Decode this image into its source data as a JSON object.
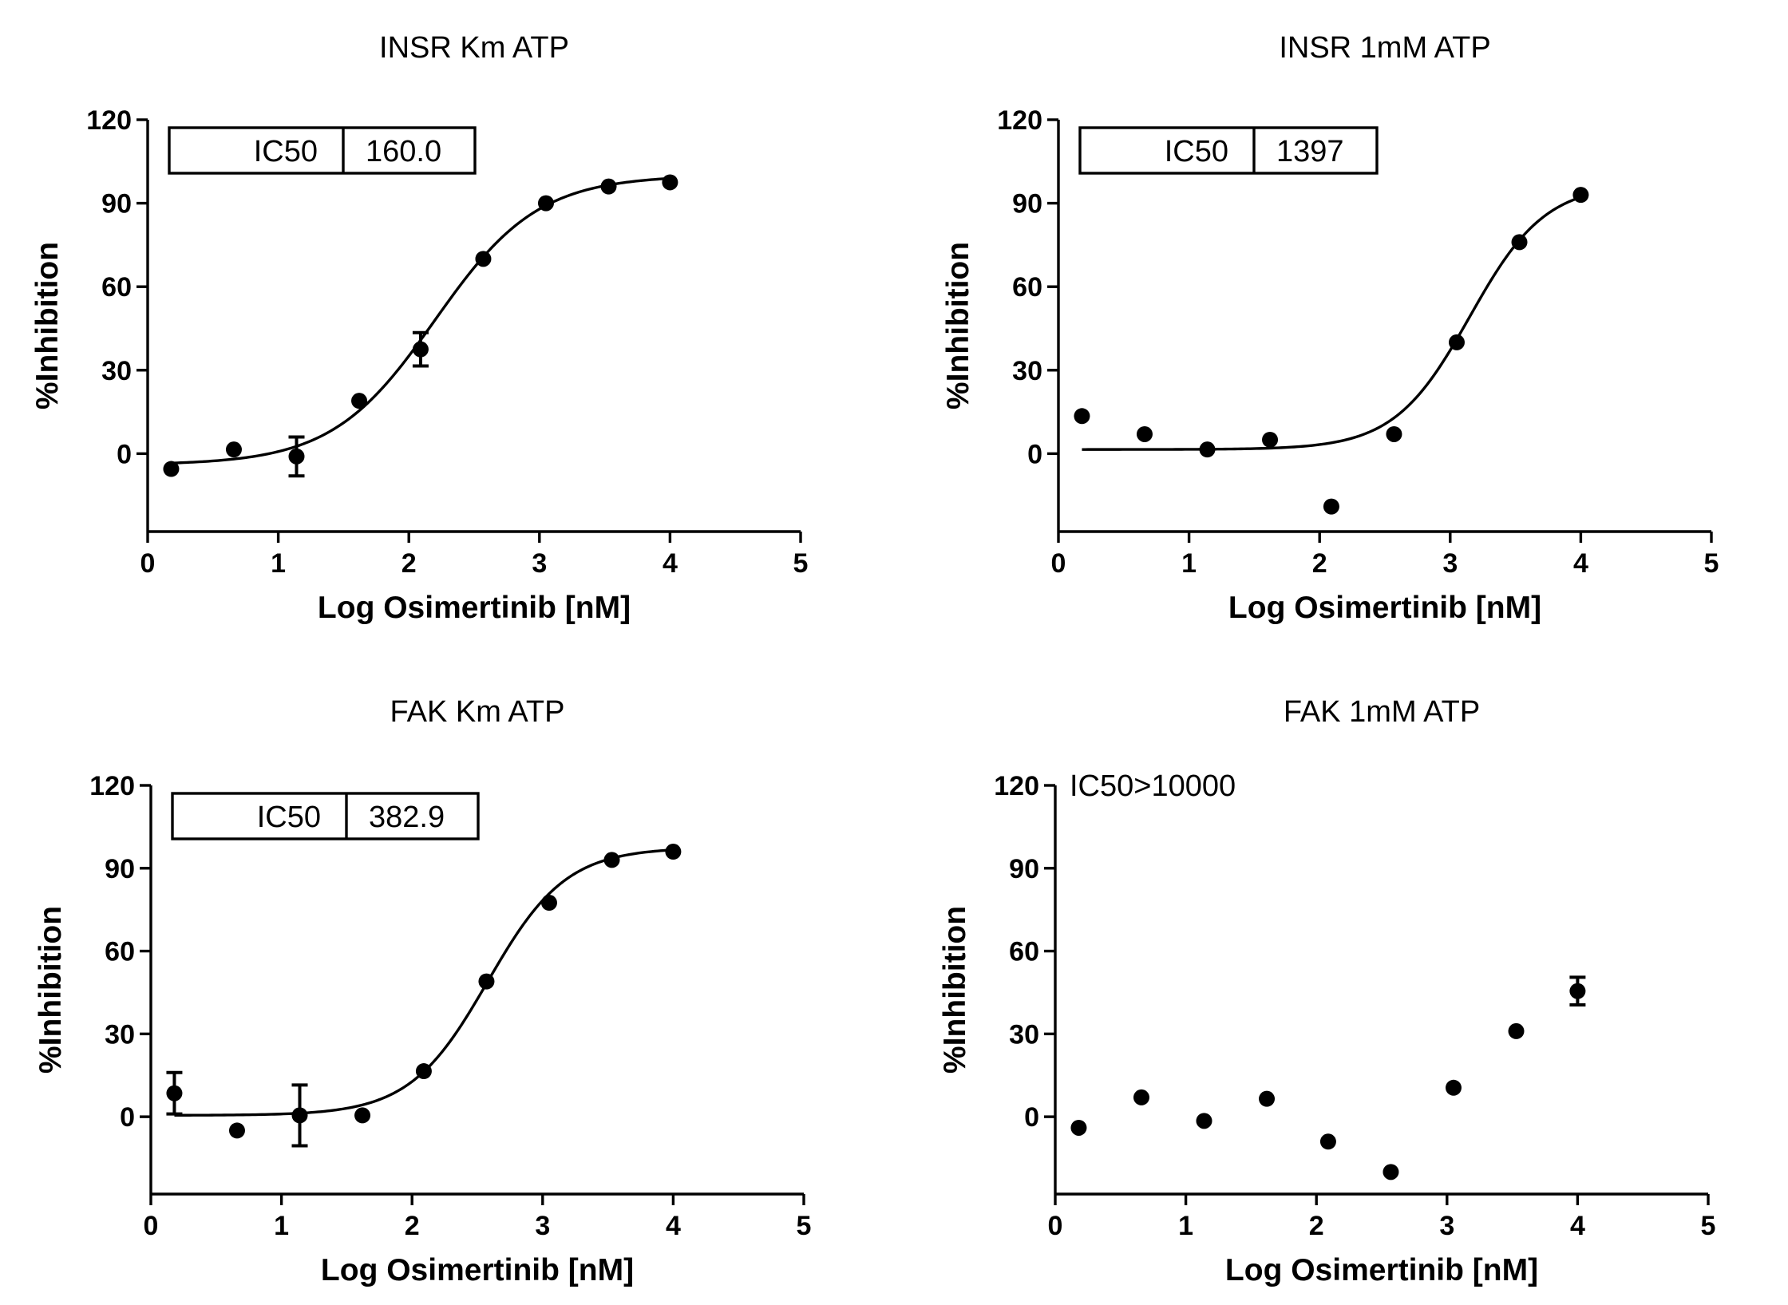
{
  "chart_data": [
    {
      "type": "scatter",
      "title": "INSR Km ATP",
      "xlabel": "Log Osimertinib  [nM]",
      "ylabel": "%Inhibition",
      "xlim": [
        0,
        5
      ],
      "ylim": [
        -28,
        120
      ],
      "x_ticks": [
        "0",
        "1",
        "2",
        "3",
        "4",
        "5"
      ],
      "y_ticks": [
        "0",
        "30",
        "60",
        "90",
        "120"
      ],
      "annotation": {
        "style": "box",
        "label": "IC50",
        "value": "160.0"
      },
      "fit_curve": true,
      "fit_params": {
        "bottom": -4,
        "top": 100,
        "logIC50": 2.2,
        "hill": 1.1
      },
      "series": [
        {
          "x": [
            0.18,
            0.66,
            1.14,
            1.62,
            2.09,
            2.57,
            3.05,
            3.53,
            4.0
          ],
          "y": [
            -5.5,
            1.5,
            -1,
            19,
            37.5,
            70,
            90,
            96,
            97.5
          ],
          "err": [
            0,
            0,
            7,
            0,
            6,
            0,
            0,
            0,
            0
          ]
        }
      ]
    },
    {
      "type": "scatter",
      "title": "INSR 1mM ATP",
      "xlabel": "Log Osimertinib  [nM]",
      "ylabel": "%Inhibition",
      "xlim": [
        0,
        5
      ],
      "ylim": [
        -28,
        120
      ],
      "x_ticks": [
        "0",
        "1",
        "2",
        "3",
        "4",
        "5"
      ],
      "y_ticks": [
        "0",
        "30",
        "60",
        "90",
        "120"
      ],
      "annotation": {
        "style": "box",
        "label": "IC50",
        "value": "1397"
      },
      "fit_curve": true,
      "fit_params": {
        "bottom": 1.5,
        "top": 97,
        "logIC50": 3.15,
        "hill": 1.5
      },
      "series": [
        {
          "x": [
            0.18,
            0.66,
            1.14,
            1.62,
            2.09,
            2.57,
            3.05,
            3.53,
            4.0
          ],
          "y": [
            13.5,
            7,
            1.5,
            5,
            -19,
            7,
            40,
            76,
            93
          ],
          "err": [
            0,
            0,
            0,
            0,
            0,
            0,
            0,
            0,
            0
          ]
        }
      ]
    },
    {
      "type": "scatter",
      "title": "FAK Km ATP",
      "xlabel": "Log Osimertinib  [nM]",
      "ylabel": "%Inhibition",
      "xlim": [
        0,
        5
      ],
      "ylim": [
        -28,
        120
      ],
      "x_ticks": [
        "0",
        "1",
        "2",
        "3",
        "4",
        "5"
      ],
      "y_ticks": [
        "0",
        "30",
        "60",
        "90",
        "120"
      ],
      "annotation": {
        "style": "box",
        "label": "IC50",
        "value": "382.9"
      },
      "fit_curve": true,
      "fit_params": {
        "bottom": 0.5,
        "top": 97.5,
        "logIC50": 2.58,
        "hill": 1.45
      },
      "series": [
        {
          "x": [
            0.18,
            0.66,
            1.14,
            1.62,
            2.09,
            2.57,
            3.05,
            3.53,
            4.0
          ],
          "y": [
            8.5,
            -5,
            0.5,
            0.5,
            16.5,
            49,
            77.5,
            93,
            96
          ],
          "err": [
            7.5,
            0,
            11,
            0,
            0,
            0,
            0,
            0,
            0
          ]
        }
      ]
    },
    {
      "type": "scatter",
      "title": "FAK 1mM ATP",
      "xlabel": "Log Osimertinib  [nM]",
      "ylabel": "%Inhibition",
      "xlim": [
        0,
        5
      ],
      "ylim": [
        -28,
        120
      ],
      "x_ticks": [
        "0",
        "1",
        "2",
        "3",
        "4",
        "5"
      ],
      "y_ticks": [
        "0",
        "30",
        "60",
        "90",
        "120"
      ],
      "annotation": {
        "style": "text",
        "label": "",
        "value": "IC50>10000"
      },
      "fit_curve": false,
      "series": [
        {
          "x": [
            0.18,
            0.66,
            1.14,
            1.62,
            2.09,
            2.57,
            3.05,
            3.53,
            4.0
          ],
          "y": [
            -4,
            7,
            -1.5,
            6.5,
            -9,
            -20,
            10.5,
            31,
            45.5
          ],
          "err": [
            0,
            0,
            0,
            0,
            0,
            0,
            0,
            0,
            5
          ]
        }
      ]
    }
  ]
}
